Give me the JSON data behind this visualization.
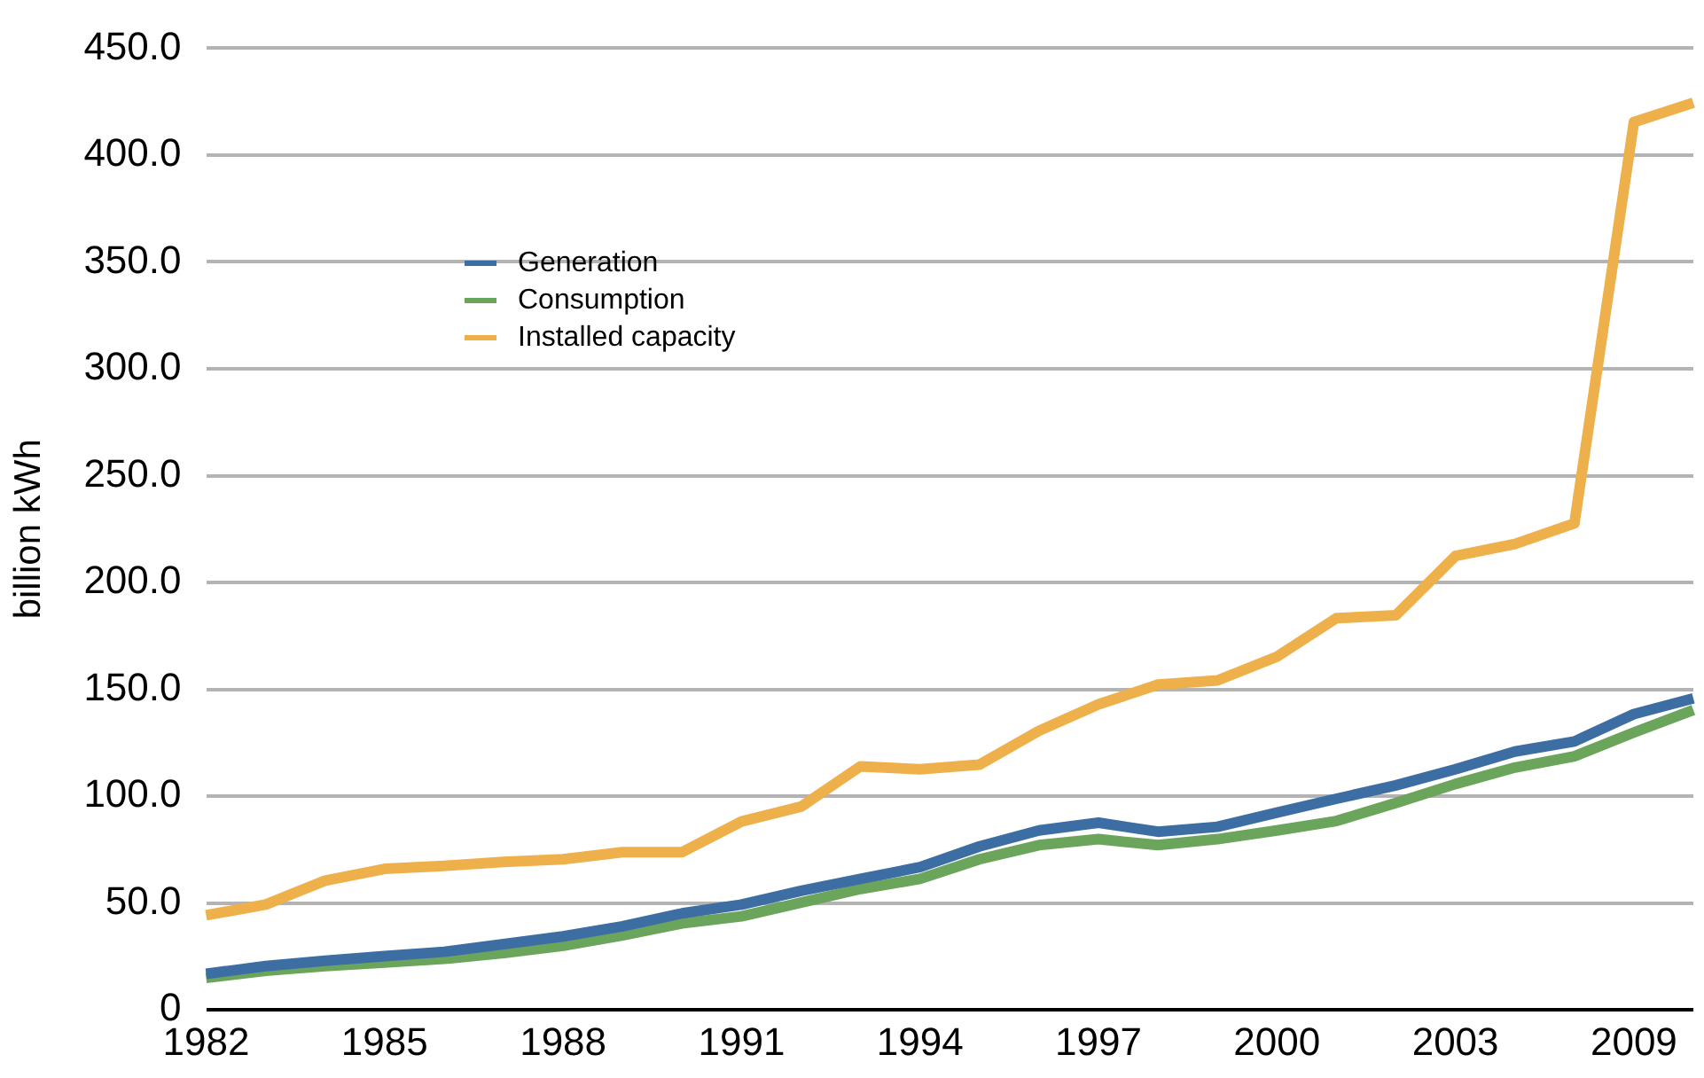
{
  "chart_data": {
    "type": "line",
    "ylabel": "billion kWh",
    "categories": [
      "1982",
      null,
      null,
      "1985",
      null,
      null,
      "1988",
      null,
      null,
      "1991",
      null,
      null,
      "1994",
      null,
      null,
      "1997",
      null,
      null,
      "2000",
      null,
      null,
      "2003",
      null,
      null,
      "2009",
      null
    ],
    "series": [
      {
        "name": "Generation",
        "color": "#3d6ea3",
        "values": [
          16.9,
          20.5,
          23,
          25.2,
          27.2,
          30.8,
          34.4,
          39.1,
          45.2,
          49.3,
          55.7,
          61.3,
          66.8,
          76.5,
          84,
          87.6,
          83.4,
          85.7,
          92.3,
          98.8,
          105.1,
          112.6,
          120.9,
          125.6,
          138.4,
          145.8
        ]
      },
      {
        "name": "Consumption",
        "color": "#6aa55b",
        "values": [
          15,
          18.3,
          20.5,
          22.2,
          23.9,
          26.6,
          30,
          34.9,
          40.5,
          43.8,
          50.2,
          56.6,
          61.3,
          70.5,
          77.1,
          79.9,
          77.1,
          79.9,
          84,
          88.4,
          96.8,
          105.7,
          113.4,
          118.7,
          129.8,
          140.3
        ]
      },
      {
        "name": "Installed capacity",
        "color": "#eeb04a",
        "values": [
          44.3,
          49.3,
          60.5,
          66,
          67.4,
          69.3,
          70.5,
          73.8,
          73.8,
          88.2,
          95.1,
          114,
          112.6,
          114.8,
          130.6,
          143,
          152.2,
          154.2,
          165.3,
          183.3,
          184.7,
          212.4,
          218,
          227.7,
          415.4,
          424.5
        ]
      }
    ],
    "ylim": [
      0,
      450
    ],
    "yticks": [
      0,
      {
        "value": 50,
        "label": "50.0"
      },
      {
        "value": 100,
        "label": "100.0"
      },
      {
        "value": 150,
        "label": "150.0"
      },
      {
        "value": 200,
        "label": "200.0"
      },
      {
        "value": 250,
        "label": "250.0"
      },
      {
        "value": 300,
        "label": "300.0"
      },
      {
        "value": 350,
        "label": "350.0"
      },
      {
        "value": 400,
        "label": "400.0"
      },
      {
        "value": 450,
        "label": "450.0"
      }
    ],
    "grid": "y",
    "legend": "top left",
    "marker": "none",
    "line_style": "solid"
  }
}
